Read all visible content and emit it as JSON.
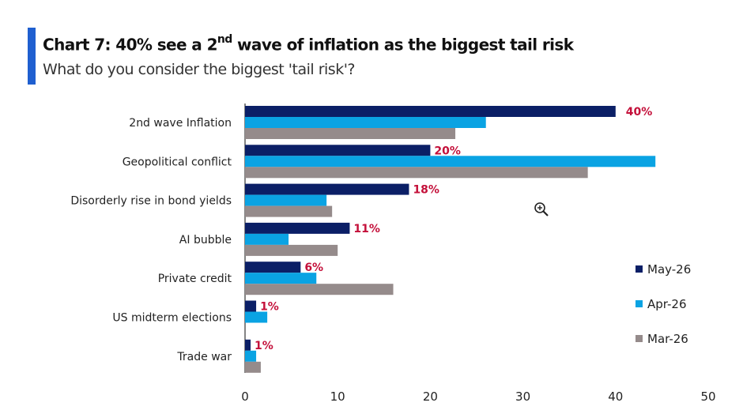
{
  "header": {
    "title_main": "Chart 7: 40% see a 2",
    "title_sup": "nd",
    "title_rest": " wave of inflation as the biggest tail risk",
    "subtitle": "What do you consider the biggest 'tail risk'?"
  },
  "colors": {
    "accent": "#1f5fd0",
    "may": "#0b1f66",
    "apr": "#0aa3e3",
    "mar": "#958b8b",
    "data_label": "#c4103a"
  },
  "icons": {
    "zoom": "zoom-in-icon"
  },
  "chart_data": {
    "type": "bar",
    "orientation": "horizontal",
    "categories": [
      "2nd wave Inflation",
      "Geopolitical conflict",
      "Disorderly rise in bond yields",
      "AI bubble",
      "Private credit",
      "US midterm elections",
      "Trade war"
    ],
    "series": [
      {
        "name": "May-26",
        "color": "#0b1f66",
        "values": [
          40,
          20,
          17.7,
          11.3,
          6,
          1.2,
          0.6
        ]
      },
      {
        "name": "Apr-26",
        "color": "#0aa3e3",
        "values": [
          26,
          44.3,
          8.8,
          4.7,
          7.7,
          2.4,
          1.2
        ]
      },
      {
        "name": "Mar-26",
        "color": "#958b8b",
        "values": [
          22.7,
          37,
          9.4,
          10,
          16,
          0,
          1.7
        ]
      }
    ],
    "data_labels": [
      "40%",
      "20%",
      "18%",
      "11%",
      "6%",
      "1%",
      "1%"
    ],
    "xlim": [
      0,
      50
    ],
    "xticks": [
      "0",
      "10",
      "20",
      "30",
      "40",
      "50"
    ],
    "legend": {
      "position": "right",
      "entries": [
        "May-26",
        "Apr-26",
        "Mar-26"
      ]
    },
    "grid": false
  }
}
